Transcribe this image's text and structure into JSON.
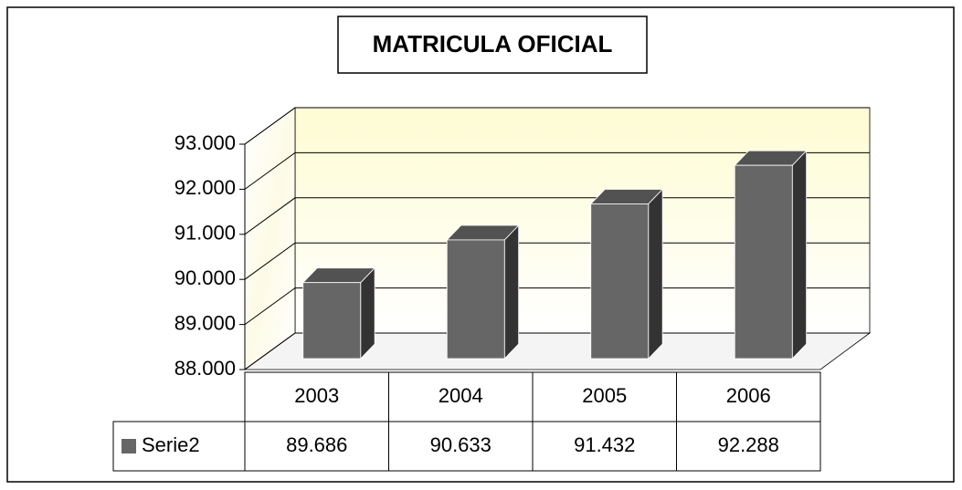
{
  "chart_data": {
    "type": "bar",
    "title": "MATRICULA OFICIAL",
    "categories": [
      "2003",
      "2004",
      "2005",
      "2006"
    ],
    "series": [
      {
        "name": "Serie2",
        "color": "#666666",
        "values": [
          89686,
          90633,
          91432,
          92288
        ],
        "value_labels": [
          "89.686",
          "90.633",
          "91.432",
          "92.288"
        ]
      }
    ],
    "ylim": [
      88000,
      93000
    ],
    "yticks": [
      {
        "value": 88000,
        "label": "88.000"
      },
      {
        "value": 89000,
        "label": "89.000"
      },
      {
        "value": 90000,
        "label": "90.000"
      },
      {
        "value": 91000,
        "label": "91.000"
      },
      {
        "value": 92000,
        "label": "92.000"
      },
      {
        "value": 93000,
        "label": "93.000"
      }
    ],
    "grid": true
  }
}
